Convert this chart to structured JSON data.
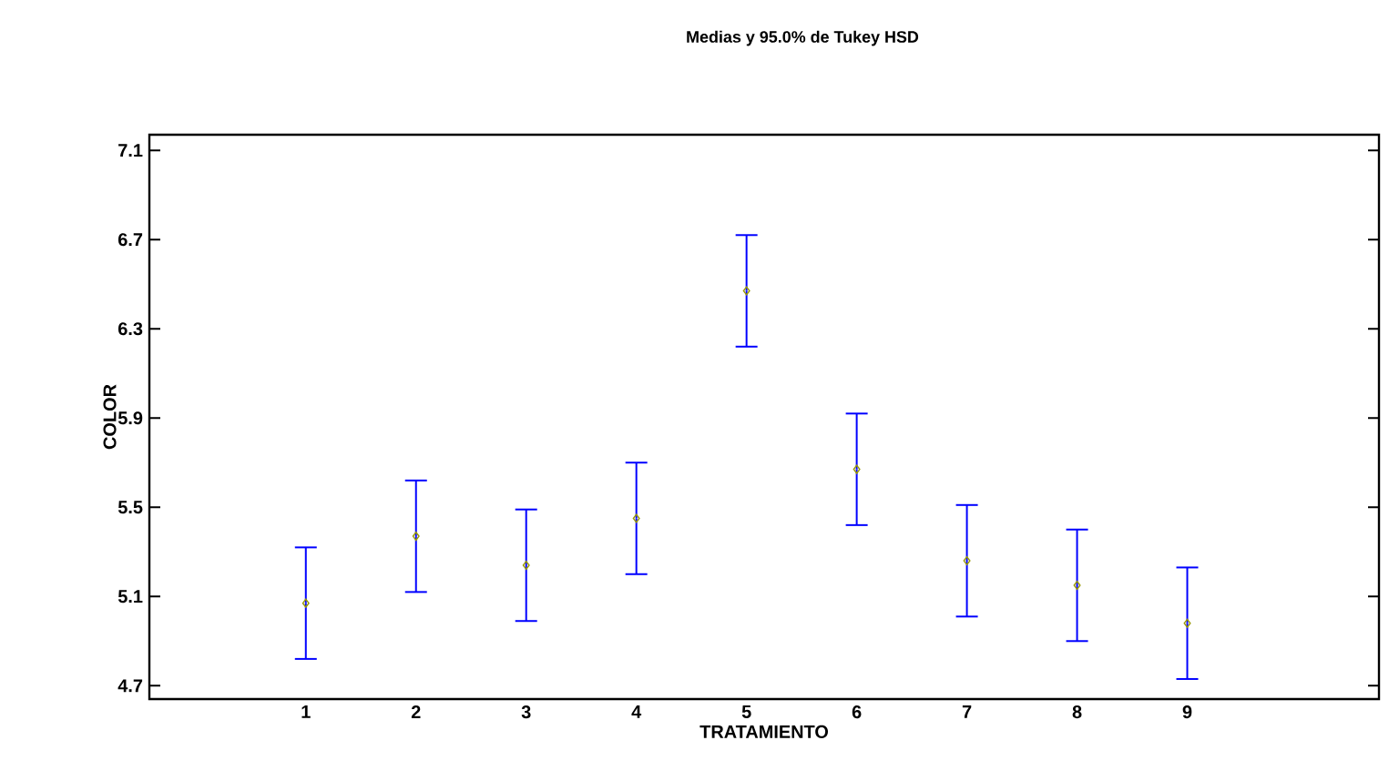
{
  "chart_data": {
    "type": "scatter",
    "title": "Medias y 95.0% de Tukey HSD",
    "xlabel": "TRATAMIENTO",
    "ylabel": "COLOR",
    "categories": [
      "1",
      "2",
      "3",
      "4",
      "5",
      "6",
      "7",
      "8",
      "9"
    ],
    "values": [
      5.07,
      5.37,
      5.24,
      5.45,
      6.47,
      5.67,
      5.26,
      5.15,
      4.98
    ],
    "errors": [
      0.25,
      0.25,
      0.25,
      0.25,
      0.25,
      0.25,
      0.25,
      0.25,
      0.25
    ],
    "color": "#999900",
    "marker": "diamond",
    "ylim": [
      4.64,
      7.17
    ],
    "yticks": [
      4.7,
      5.1,
      5.5,
      5.9,
      6.3,
      6.7,
      7.1
    ],
    "grid": false
  }
}
